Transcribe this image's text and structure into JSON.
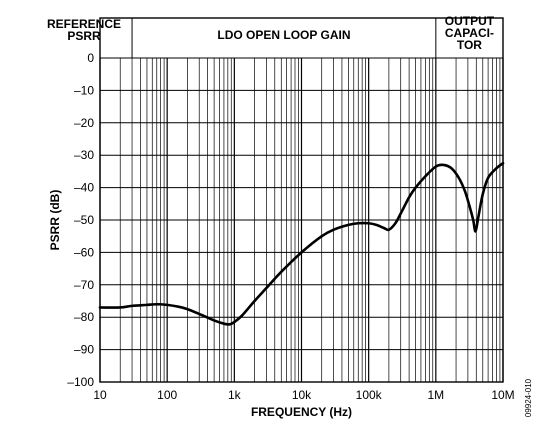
{
  "chart_data": {
    "type": "line",
    "title": "",
    "xlabel": "FREQUENCY (Hz)",
    "ylabel": "PSRR (dB)",
    "x_scale": "log",
    "xlim": [
      10,
      10000000
    ],
    "ylim": [
      -100,
      0
    ],
    "grid": true,
    "x_ticks": [
      {
        "value": 10,
        "label": "10"
      },
      {
        "value": 100,
        "label": "100"
      },
      {
        "value": 1000,
        "label": "1k"
      },
      {
        "value": 10000,
        "label": "10k"
      },
      {
        "value": 100000,
        "label": "100k"
      },
      {
        "value": 1000000,
        "label": "1M"
      },
      {
        "value": 10000000,
        "label": "10M"
      }
    ],
    "y_ticks": [
      {
        "value": 0,
        "label": "0"
      },
      {
        "value": -10,
        "label": "–10"
      },
      {
        "value": -20,
        "label": "–20"
      },
      {
        "value": -30,
        "label": "–30"
      },
      {
        "value": -40,
        "label": "–40"
      },
      {
        "value": -50,
        "label": "–50"
      },
      {
        "value": -60,
        "label": "–60"
      },
      {
        "value": -70,
        "label": "–70"
      },
      {
        "value": -80,
        "label": "–80"
      },
      {
        "value": -90,
        "label": "–90"
      },
      {
        "value": -100,
        "label": "–100"
      }
    ],
    "regions": [
      {
        "lines": [
          "REFERENCE",
          "PSRR"
        ],
        "x_start": 10,
        "x_end": 30
      },
      {
        "lines": [
          "LDO OPEN LOOP GAIN"
        ],
        "x_start": 30,
        "x_end": 1000000
      },
      {
        "lines": [
          "OUTPUT",
          "CAPACI-",
          "TOR"
        ],
        "x_start": 1000000,
        "x_end": 10000000
      }
    ],
    "region_boundaries": [
      30,
      1000000
    ],
    "figure_id": "09924-010",
    "series": [
      {
        "x": [
          10,
          20,
          30,
          50,
          70,
          100,
          150,
          200,
          300,
          500,
          700,
          850,
          1000,
          1300,
          2000,
          3000,
          5000,
          10000,
          20000,
          30000,
          50000,
          70000,
          100000,
          130000,
          170000,
          200000,
          250000,
          300000,
          400000,
          500000,
          700000,
          1000000,
          1300000,
          1700000,
          2200000,
          2700000,
          3200000,
          3600000,
          3900000,
          4300000,
          5000000,
          6000000,
          8000000,
          10000000
        ],
        "y": [
          -77,
          -77,
          -76.5,
          -76.2,
          -76,
          -76.2,
          -76.8,
          -77.5,
          -79,
          -81,
          -82,
          -82.2,
          -81.5,
          -79.5,
          -75,
          -71,
          -66,
          -60,
          -55,
          -53,
          -51.5,
          -51,
          -51,
          -51.5,
          -52.5,
          -53,
          -51,
          -48,
          -43,
          -40,
          -36.5,
          -33.5,
          -33,
          -34,
          -37,
          -41,
          -46,
          -50,
          -53.5,
          -49,
          -42,
          -37,
          -34,
          -32.5
        ]
      }
    ]
  }
}
